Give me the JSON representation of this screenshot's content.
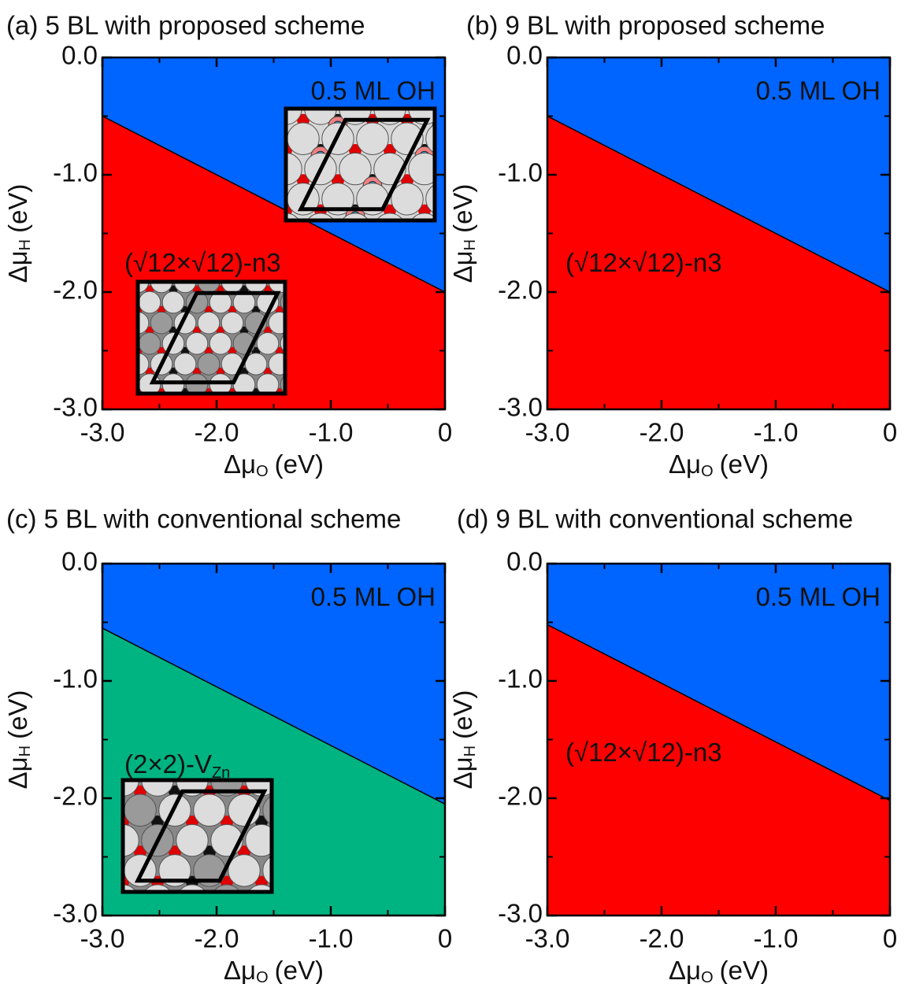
{
  "chart_data": [
    {
      "type": "phase",
      "title": "(a) 5 BL with proposed scheme",
      "xlabel": {
        "text": "Δμ",
        "sub": "O",
        "unit": "(eV)"
      },
      "ylabel": {
        "text": "Δμ",
        "sub": "H",
        "unit": "(eV)"
      },
      "x": [
        -3,
        0
      ],
      "boundary": [
        -0.5,
        -2.0
      ],
      "regions": [
        {
          "name": "0.5 ML OH",
          "color": "#0064ff"
        },
        {
          "name": "(√12×√12)-n3",
          "color": "#ff0000"
        }
      ],
      "xlim": [
        -3,
        0
      ],
      "ylim": [
        -3,
        0
      ],
      "xticks": [
        {
          "value": -3,
          "label": "-3.0"
        },
        {
          "value": -2,
          "label": "-2.0"
        },
        {
          "value": -1,
          "label": "-1.0"
        },
        0
      ],
      "yticks": [
        {
          "value": 0,
          "label": "0.0"
        },
        {
          "value": -1,
          "label": "-1.0"
        },
        {
          "value": -2,
          "label": "-2.0"
        },
        {
          "value": -3,
          "label": "-3.0"
        }
      ],
      "xminor": [
        -2.5,
        -1.5,
        -0.5
      ],
      "yminor": [
        -0.5,
        -1.5,
        -2.5
      ]
    },
    {
      "type": "phase",
      "title": "(b) 9 BL with proposed scheme",
      "xlabel": {
        "text": "Δμ",
        "sub": "O",
        "unit": "(eV)"
      },
      "ylabel": {
        "text": "Δμ",
        "sub": "H",
        "unit": "(eV)"
      },
      "x": [
        -3,
        0
      ],
      "boundary": [
        -0.5,
        -2.0
      ],
      "regions": [
        {
          "name": "0.5 ML OH",
          "color": "#0064ff"
        },
        {
          "name": "(√12×√12)-n3",
          "color": "#ff0000"
        }
      ],
      "xlim": [
        -3,
        0
      ],
      "ylim": [
        -3,
        0
      ],
      "xticks": [
        {
          "value": -3,
          "label": "-3.0"
        },
        {
          "value": -2,
          "label": "-2.0"
        },
        {
          "value": -1,
          "label": "-1.0"
        },
        0
      ],
      "yticks": [
        {
          "value": 0,
          "label": "0.0"
        },
        {
          "value": -1,
          "label": "-1.0"
        },
        {
          "value": -2,
          "label": "-2.0"
        },
        {
          "value": -3,
          "label": "-3.0"
        }
      ],
      "xminor": [
        -2.5,
        -1.5,
        -0.5
      ],
      "yminor": [
        -0.5,
        -1.5,
        -2.5
      ]
    },
    {
      "type": "phase",
      "title": "(c) 5 BL with conventional scheme",
      "xlabel": {
        "text": "Δμ",
        "sub": "O",
        "unit": "(eV)"
      },
      "ylabel": {
        "text": "Δμ",
        "sub": "H",
        "unit": "(eV)"
      },
      "x": [
        -3,
        0
      ],
      "boundary": [
        -0.55,
        -2.05
      ],
      "regions": [
        {
          "name": "0.5 ML OH",
          "color": "#0064ff"
        },
        {
          "name": "(2×2)-V",
          "sub": "Zn",
          "color": "#00b482"
        }
      ],
      "xlim": [
        -3,
        0
      ],
      "ylim": [
        -3,
        0
      ],
      "xticks": [
        {
          "value": -3,
          "label": "-3.0"
        },
        {
          "value": -2,
          "label": "-2.0"
        },
        {
          "value": -1,
          "label": "-1.0"
        },
        0
      ],
      "yticks": [
        {
          "value": 0,
          "label": "0.0"
        },
        {
          "value": -1,
          "label": "-1.0"
        },
        {
          "value": -2,
          "label": "-2.0"
        },
        {
          "value": -3,
          "label": "-3.0"
        }
      ],
      "xminor": [
        -2.5,
        -1.5,
        -0.5
      ],
      "yminor": [
        -0.5,
        -1.5,
        -2.5
      ]
    },
    {
      "type": "phase",
      "title": "(d) 9 BL with conventional scheme",
      "xlabel": {
        "text": "Δμ",
        "sub": "O",
        "unit": "(eV)"
      },
      "ylabel": {
        "text": "Δμ",
        "sub": "H",
        "unit": "(eV)"
      },
      "x": [
        -3,
        0
      ],
      "boundary": [
        -0.52,
        -2.02
      ],
      "regions": [
        {
          "name": "0.5 ML OH",
          "color": "#0064ff"
        },
        {
          "name": "(√12×√12)-n3",
          "color": "#ff0000"
        }
      ],
      "xlim": [
        -3,
        0
      ],
      "ylim": [
        -3,
        0
      ],
      "xticks": [
        {
          "value": -3,
          "label": "-3.0"
        },
        {
          "value": -2,
          "label": "-2.0"
        },
        {
          "value": -1,
          "label": "-1.0"
        },
        0
      ],
      "yticks": [
        {
          "value": 0,
          "label": "0.0"
        },
        {
          "value": -1,
          "label": "-1.0"
        },
        {
          "value": -2,
          "label": "-2.0"
        },
        {
          "value": -3,
          "label": "-3.0"
        }
      ],
      "xminor": [
        -2.5,
        -1.5,
        -0.5
      ],
      "yminor": [
        -0.5,
        -1.5,
        -2.5
      ]
    }
  ]
}
